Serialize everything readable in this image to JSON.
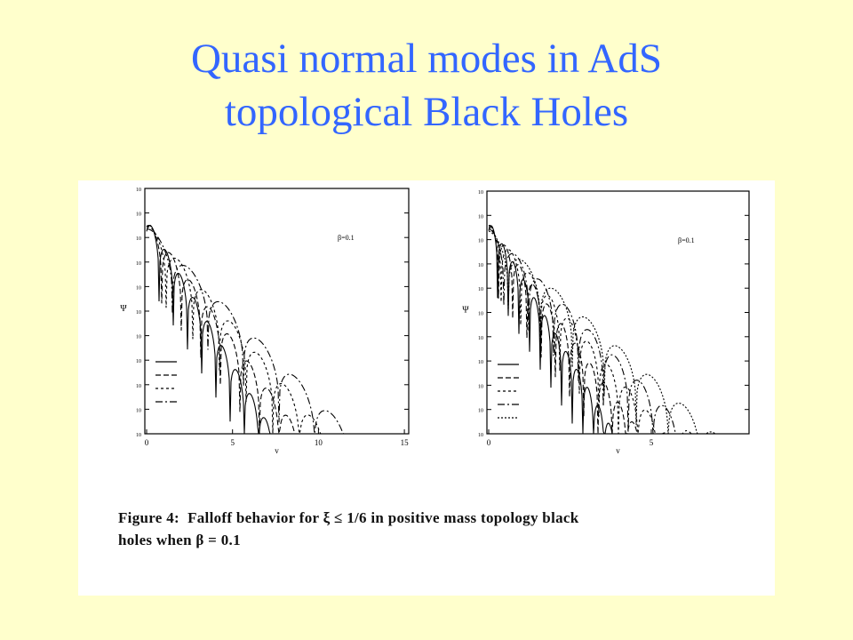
{
  "title": {
    "lines": [
      "Quasi normal modes in AdS",
      "topological Black Holes"
    ]
  },
  "figure": {
    "panels": [
      {
        "annotation": "β=0.1",
        "y_label": "Ψ",
        "x_label": "v",
        "x_ticks": [
          "0",
          "5",
          "10",
          "15"
        ]
      },
      {
        "annotation": "β=0.1",
        "y_label": "Ψ",
        "x_label": "v",
        "x_ticks": [
          "0",
          "5"
        ]
      }
    ],
    "caption": {
      "label": "Figure 4:",
      "lines": [
        "Falloff behavior for ξ ≤ 1/6 in positive mass topology black",
        "holes when β = 0.1"
      ]
    }
  }
}
